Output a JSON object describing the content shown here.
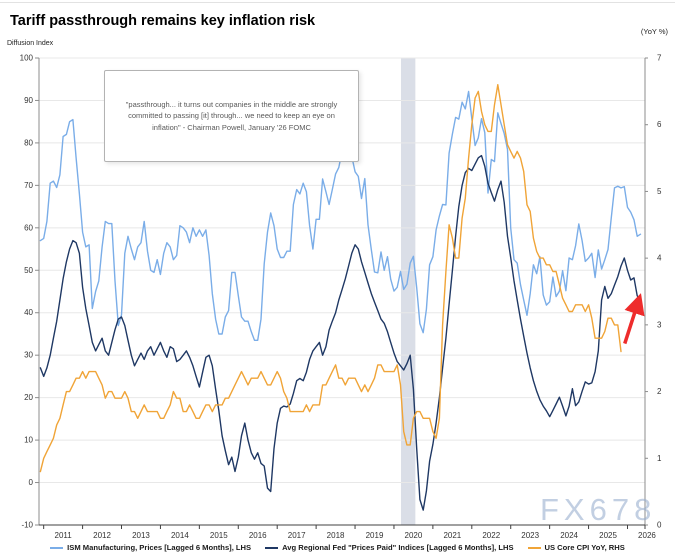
{
  "header": {
    "title": "Tariff passthrough remains key inflation risk",
    "left_axis_caption": "Diffusion Index",
    "right_axis_caption": "(YoY %)"
  },
  "annotations": {
    "quote": "\"passthrough... it turns out companies in the middle are strongly committed to passing [it] through... we need to keep an eye on inflation\" - Chairman Powell, January '26 FOMC",
    "watermark": "FX678"
  },
  "legend": [
    {
      "label": "ISM Manufacturing, Prices [Lagged 6 Months], LHS",
      "color": "#7aade8"
    },
    {
      "label": "Avg Regional Fed \"Prices Paid\" Indices [Lagged 6 Months], LHS",
      "color": "#1f3864"
    },
    {
      "label": "US Core CPI YoY, RHS",
      "color": "#f0a437"
    }
  ],
  "colors": {
    "ism": "#7aade8",
    "fed": "#1f3864",
    "cpi": "#f0a437",
    "grid": "#e8e8e8",
    "axis": "#8c8c8c",
    "bottom_axis": "#404040",
    "band": "#dadee7",
    "arrow": "#ee2c2c",
    "tick_text": "#333333"
  },
  "chart_data": {
    "type": "line",
    "title": "Tariff passthrough remains key inflation risk",
    "left_axis": {
      "label": "Diffusion Index",
      "min": -10,
      "max": 100,
      "tick_step": 10,
      "ticks": [
        100,
        90,
        80,
        70,
        60,
        50,
        40,
        30,
        20,
        10,
        0,
        -10
      ]
    },
    "right_axis": {
      "label": "(YoY %)",
      "min": 0,
      "max": 7,
      "tick_step": 1,
      "ticks": [
        7,
        6,
        5,
        4,
        3,
        2,
        1,
        0
      ]
    },
    "x_axis": {
      "min": 2010.88,
      "max": 2026.45,
      "year_ticks": [
        2011,
        2012,
        2013,
        2014,
        2015,
        2016,
        2017,
        2018,
        2019,
        2020,
        2021,
        2022,
        2023,
        2024,
        2025,
        2026
      ]
    },
    "recession_band": {
      "from": 2020.18,
      "to": 2020.55
    },
    "grid": true,
    "legend_position": "bottom",
    "red_arrow": {
      "x1": 2025.93,
      "y1_right": 2.72,
      "x2": 2026.25,
      "y2_right": 3.3
    },
    "series": [
      {
        "name": "ISM Manufacturing, Prices [Lagged 6 Months], LHS",
        "axis": "left",
        "color": "#7aade8",
        "start": 2010.917,
        "step": 0.0833333,
        "values": [
          57,
          57.5,
          61.5,
          70.5,
          71,
          69.5,
          72.5,
          81.5,
          82,
          85,
          85.5,
          76.5,
          68,
          59,
          55.5,
          56,
          41,
          45,
          47.5,
          55.5,
          61.5,
          61,
          61,
          47.5,
          37,
          39.5,
          54,
          58,
          55,
          52.5,
          55.5,
          56.5,
          61.5,
          54.5,
          50,
          49.5,
          52.5,
          49,
          54,
          56.5,
          55.5,
          52.5,
          53.5,
          60.5,
          60,
          59,
          56.5,
          60,
          58,
          59.5,
          58,
          59.5,
          53.5,
          44.5,
          38.5,
          35,
          35,
          39,
          40.5,
          49.5,
          49.5,
          44,
          39,
          38,
          38,
          35.5,
          33.5,
          33.5,
          38.5,
          51.5,
          59,
          63.5,
          60.5,
          55,
          53,
          53,
          54.5,
          54.5,
          65.5,
          69,
          68,
          70.5,
          68.5,
          60.5,
          55,
          62,
          62,
          71.5,
          68.5,
          65.5,
          69,
          72.7,
          74.2,
          78.1,
          79.3,
          79.5,
          76.8,
          73.2,
          72.1,
          66.9,
          71.6,
          60.7,
          54.9,
          49.6,
          49.4,
          54.3,
          50,
          53.2,
          47.9,
          45.1,
          46,
          49.7,
          45.5,
          46.7,
          51.7,
          53.3,
          45.9,
          37.4,
          35.3,
          40.8,
          51.3,
          53.2,
          59.5,
          62.8,
          65.5,
          65.4,
          77.6,
          82.1,
          86,
          85.6,
          89.6,
          88,
          92.1,
          85.7,
          79.4,
          81.2,
          85.7,
          82.4,
          68.2,
          76.1,
          75.6,
          87.1,
          84.6,
          82.2,
          78.5,
          60,
          52.5,
          51.7,
          46.6,
          43,
          39.4,
          44.5,
          51.3,
          49.2,
          53.2,
          44.2,
          41.8,
          42.6,
          48.4,
          43.8,
          45.1,
          49.9,
          45.2,
          52.9,
          52.5,
          55.8,
          60.9,
          57,
          52.1,
          52.9,
          54,
          48.3,
          54.8,
          50.3,
          52.5,
          54.9,
          62.4,
          69.4,
          69.8,
          69.4,
          69.7,
          64.8,
          63.7,
          61.9,
          58,
          58.5
        ]
      },
      {
        "name": "Avg Regional Fed \"Prices Paid\" Indices [Lagged 6 Months], LHS",
        "axis": "left",
        "color": "#1f3864",
        "start": 2010.917,
        "step": 0.0833333,
        "values": [
          27,
          25,
          27,
          30,
          34,
          38,
          43,
          48,
          52,
          55,
          57,
          56.5,
          54,
          46,
          41,
          37,
          33,
          31,
          32.5,
          34,
          31,
          30,
          33,
          36,
          38.5,
          39,
          37,
          33.5,
          30,
          27.5,
          29,
          30.5,
          29,
          31,
          32,
          30,
          31.5,
          33,
          31,
          29.5,
          32,
          31.5,
          28.5,
          29,
          30,
          31,
          29.5,
          27.5,
          25,
          22.5,
          26,
          29.5,
          30,
          27.5,
          22,
          17,
          11,
          7.5,
          4.2,
          6,
          2.6,
          6,
          11,
          14,
          10,
          7,
          5.5,
          7,
          4.5,
          3.9,
          -1.3,
          -2.1,
          8,
          14,
          17.5,
          18,
          17.8,
          18.5,
          21,
          24,
          24.5,
          24,
          26,
          29,
          31,
          32,
          33,
          30,
          32,
          35.9,
          38,
          40,
          43,
          45.5,
          48,
          51,
          54,
          56,
          55,
          52,
          49.5,
          47,
          44.5,
          42.5,
          40.5,
          38.5,
          37.5,
          35.5,
          33,
          30.5,
          28.5,
          27.5,
          26.5,
          28,
          30,
          22,
          8,
          -4,
          -6.5,
          -2,
          5,
          9,
          14,
          20,
          27,
          34,
          42,
          50,
          58,
          65,
          70,
          73,
          74,
          73.5,
          75,
          76.5,
          77,
          74.5,
          70.5,
          68.3,
          66.3,
          69,
          71,
          66,
          58,
          53,
          47.5,
          43,
          38.5,
          34.5,
          30.5,
          27,
          24,
          21.5,
          19.5,
          18,
          16.9,
          15.5,
          17,
          18.5,
          20.1,
          18,
          15.7,
          18,
          22.1,
          18.1,
          19,
          21.5,
          23.7,
          23.2,
          23.5,
          26.1,
          31,
          43,
          46.2,
          43.4,
          44.5,
          46.5,
          48.5,
          51,
          52.9,
          50,
          47.7,
          48.2,
          44,
          42.6
        ]
      },
      {
        "name": "US Core CPI YoY, RHS",
        "axis": "right",
        "color": "#f0a437",
        "start": 2010.917,
        "step": 0.0833333,
        "values": [
          0.8,
          1.0,
          1.1,
          1.2,
          1.3,
          1.5,
          1.6,
          1.8,
          2.0,
          2.0,
          2.1,
          2.2,
          2.2,
          2.3,
          2.2,
          2.3,
          2.3,
          2.3,
          2.2,
          2.1,
          1.9,
          2.0,
          2.0,
          1.9,
          1.9,
          1.9,
          2.0,
          1.9,
          1.7,
          1.7,
          1.6,
          1.7,
          1.8,
          1.7,
          1.7,
          1.7,
          1.7,
          1.6,
          1.6,
          1.7,
          1.8,
          2.0,
          1.9,
          1.9,
          1.7,
          1.7,
          1.8,
          1.7,
          1.6,
          1.6,
          1.7,
          1.8,
          1.8,
          1.7,
          1.8,
          1.8,
          1.8,
          1.9,
          1.9,
          2.0,
          2.1,
          2.2,
          2.3,
          2.2,
          2.1,
          2.2,
          2.2,
          2.2,
          2.3,
          2.2,
          2.1,
          2.1,
          2.2,
          2.3,
          2.2,
          2.0,
          1.9,
          1.7,
          1.7,
          1.7,
          1.7,
          1.7,
          1.8,
          1.7,
          1.8,
          1.8,
          1.8,
          2.1,
          2.1,
          2.2,
          2.3,
          2.4,
          2.2,
          2.2,
          2.1,
          2.2,
          2.2,
          2.2,
          2.1,
          2.0,
          2.1,
          2.0,
          2.1,
          2.2,
          2.4,
          2.4,
          2.3,
          2.3,
          2.3,
          2.3,
          2.4,
          2.1,
          1.4,
          1.2,
          1.2,
          1.6,
          1.7,
          1.7,
          1.6,
          1.6,
          1.6,
          1.4,
          1.3,
          1.6,
          3.0,
          3.8,
          4.5,
          4.3,
          4.0,
          4.0,
          4.6,
          4.9,
          5.5,
          6.0,
          6.4,
          6.5,
          6.2,
          6.0,
          5.9,
          5.9,
          6.3,
          6.6,
          6.3,
          6.0,
          5.7,
          5.6,
          5.5,
          5.6,
          5.5,
          5.3,
          4.8,
          4.7,
          4.3,
          4.1,
          4.0,
          4.0,
          3.9,
          3.9,
          3.8,
          3.8,
          3.6,
          3.4,
          3.3,
          3.2,
          3.2,
          3.3,
          3.3,
          3.3,
          3.2,
          3.3,
          3.1,
          2.8,
          2.8,
          2.8,
          2.9,
          3.1,
          3.1,
          3.0,
          3.0,
          2.6
        ]
      }
    ]
  }
}
